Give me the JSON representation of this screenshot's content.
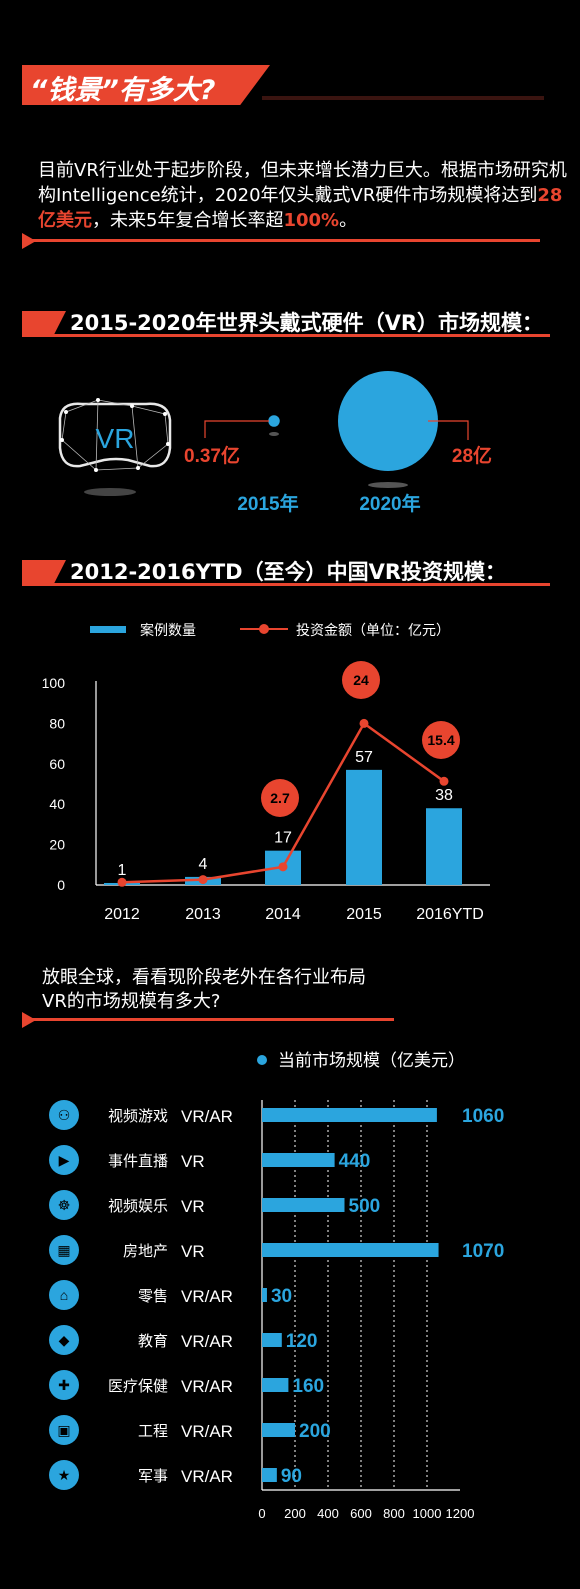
{
  "header": {
    "title": "“钱景”有多大?"
  },
  "intro": {
    "part1": "目前VR行业处于起步阶段，但未来增长潜力巨大。根据市场研究机构Intelligence统计，2020年仅头戴式VR硬件市场规模将达到",
    "hl1": "28亿美元",
    "part2": "，未来5年复合增长率超",
    "hl2": "100%",
    "part3": "。"
  },
  "section1": {
    "title": "2015-2020年世界头戴式硬件（VR）市场规模：",
    "vr_logo": "VR",
    "icon": "vr-headset-icon"
  },
  "section2": {
    "title": "2012-2016YTD（至今）中国VR投资规模："
  },
  "section3": {
    "question_line1": "放眼全球，看看现阶段老外在各行业布局",
    "question_line2": "VR的市场规模有多大?"
  },
  "colors": {
    "accent_red": "#e8452f",
    "accent_blue": "#2ba5de",
    "background": "#000000"
  },
  "chart_data": [
    {
      "type": "bubble",
      "categories": [
        "2015年",
        "2020年"
      ],
      "values": [
        0.37,
        28
      ],
      "labels": [
        "0.37亿",
        "28亿"
      ]
    },
    {
      "type": "bar+line",
      "legend": [
        "案例数量",
        "投资金额（单位：亿元）"
      ],
      "categories": [
        "2012",
        "2013",
        "2014",
        "2015",
        "2016YTD"
      ],
      "series": [
        {
          "name": "案例数量",
          "type": "bar",
          "values": [
            1,
            4,
            17,
            57,
            38
          ]
        },
        {
          "name": "投资金额（单位：亿元）",
          "type": "line",
          "values": [
            0.4,
            0.8,
            2.7,
            24,
            15.4
          ],
          "labels": [
            "",
            "",
            "2.7",
            "24",
            "15.4"
          ]
        }
      ],
      "ylim": [
        0,
        100
      ],
      "yticks": [
        0,
        20,
        40,
        60,
        80,
        100
      ]
    },
    {
      "type": "bar",
      "orientation": "horizontal",
      "legend": "当前市场规模（亿美元）",
      "rows": [
        {
          "name": "视频游戏",
          "tech": "VR/AR",
          "value": 1060,
          "icon": "gamepad-icon"
        },
        {
          "name": "事件直播",
          "tech": "VR",
          "value": 440,
          "icon": "video-play-icon"
        },
        {
          "name": "视频娱乐",
          "tech": "VR",
          "value": 500,
          "icon": "film-reel-icon"
        },
        {
          "name": "房地产",
          "tech": "VR",
          "value": 1070,
          "icon": "building-icon"
        },
        {
          "name": "零售",
          "tech": "VR/AR",
          "value": 30,
          "icon": "shop-icon"
        },
        {
          "name": "教育",
          "tech": "VR/AR",
          "value": 120,
          "icon": "graduation-cap-icon"
        },
        {
          "name": "医疗保健",
          "tech": "VR/AR",
          "value": 160,
          "icon": "medical-kit-icon"
        },
        {
          "name": "工程",
          "tech": "VR/AR",
          "value": 200,
          "icon": "cube-icon"
        },
        {
          "name": "军事",
          "tech": "VR/AR",
          "value": 90,
          "icon": "military-badge-icon"
        }
      ],
      "xlim": [
        0,
        1200
      ],
      "xticks": [
        0,
        200,
        400,
        600,
        800,
        1000,
        1200
      ]
    }
  ]
}
